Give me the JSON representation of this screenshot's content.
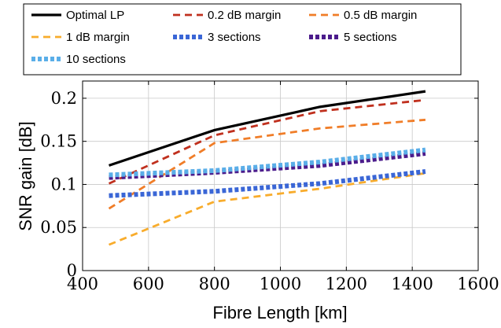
{
  "chart_data": {
    "type": "line",
    "title": "",
    "xlabel": "Fibre Length [km]",
    "ylabel": "SNR gain [dB]",
    "xlim": [
      400,
      1600
    ],
    "ylim": [
      0,
      0.22
    ],
    "x_ticks": [
      400,
      600,
      800,
      1000,
      1200,
      1400,
      1600
    ],
    "y_ticks": [
      0,
      0.05,
      0.1,
      0.15,
      0.2
    ],
    "x_tick_labels": [
      "400",
      "600",
      "800",
      "1000",
      "1200",
      "1400",
      "1600"
    ],
    "y_tick_labels": [
      "0",
      "0.05",
      "0.1",
      "0.15",
      "0.2"
    ],
    "grid": true,
    "legend_position": "top",
    "x": [
      480,
      800,
      1120,
      1440
    ],
    "series": [
      {
        "name": "Optimal LP",
        "color": "#000000",
        "style": "solid",
        "values": [
          0.122,
          0.163,
          0.19,
          0.208
        ]
      },
      {
        "name": "0.2 dB margin",
        "color": "#c0301e",
        "style": "dashed",
        "values": [
          0.101,
          0.157,
          0.185,
          0.198
        ]
      },
      {
        "name": "0.5 dB margin",
        "color": "#f07d28",
        "style": "dashed",
        "values": [
          0.072,
          0.148,
          0.165,
          0.175
        ]
      },
      {
        "name": "1 dB margin",
        "color": "#f8ac2c",
        "style": "dashed",
        "values": [
          0.03,
          0.08,
          0.095,
          0.113
        ]
      },
      {
        "name": "3 sections",
        "color": "#3a66d6",
        "style": "dotted",
        "values": [
          0.087,
          0.092,
          0.101,
          0.115
        ]
      },
      {
        "name": "5 sections",
        "color": "#4b1c8c",
        "style": "dotted",
        "values": [
          0.108,
          0.114,
          0.122,
          0.136
        ]
      },
      {
        "name": "10 sections",
        "color": "#5aaee8",
        "style": "dotted",
        "values": [
          0.111,
          0.116,
          0.126,
          0.14
        ]
      }
    ]
  }
}
